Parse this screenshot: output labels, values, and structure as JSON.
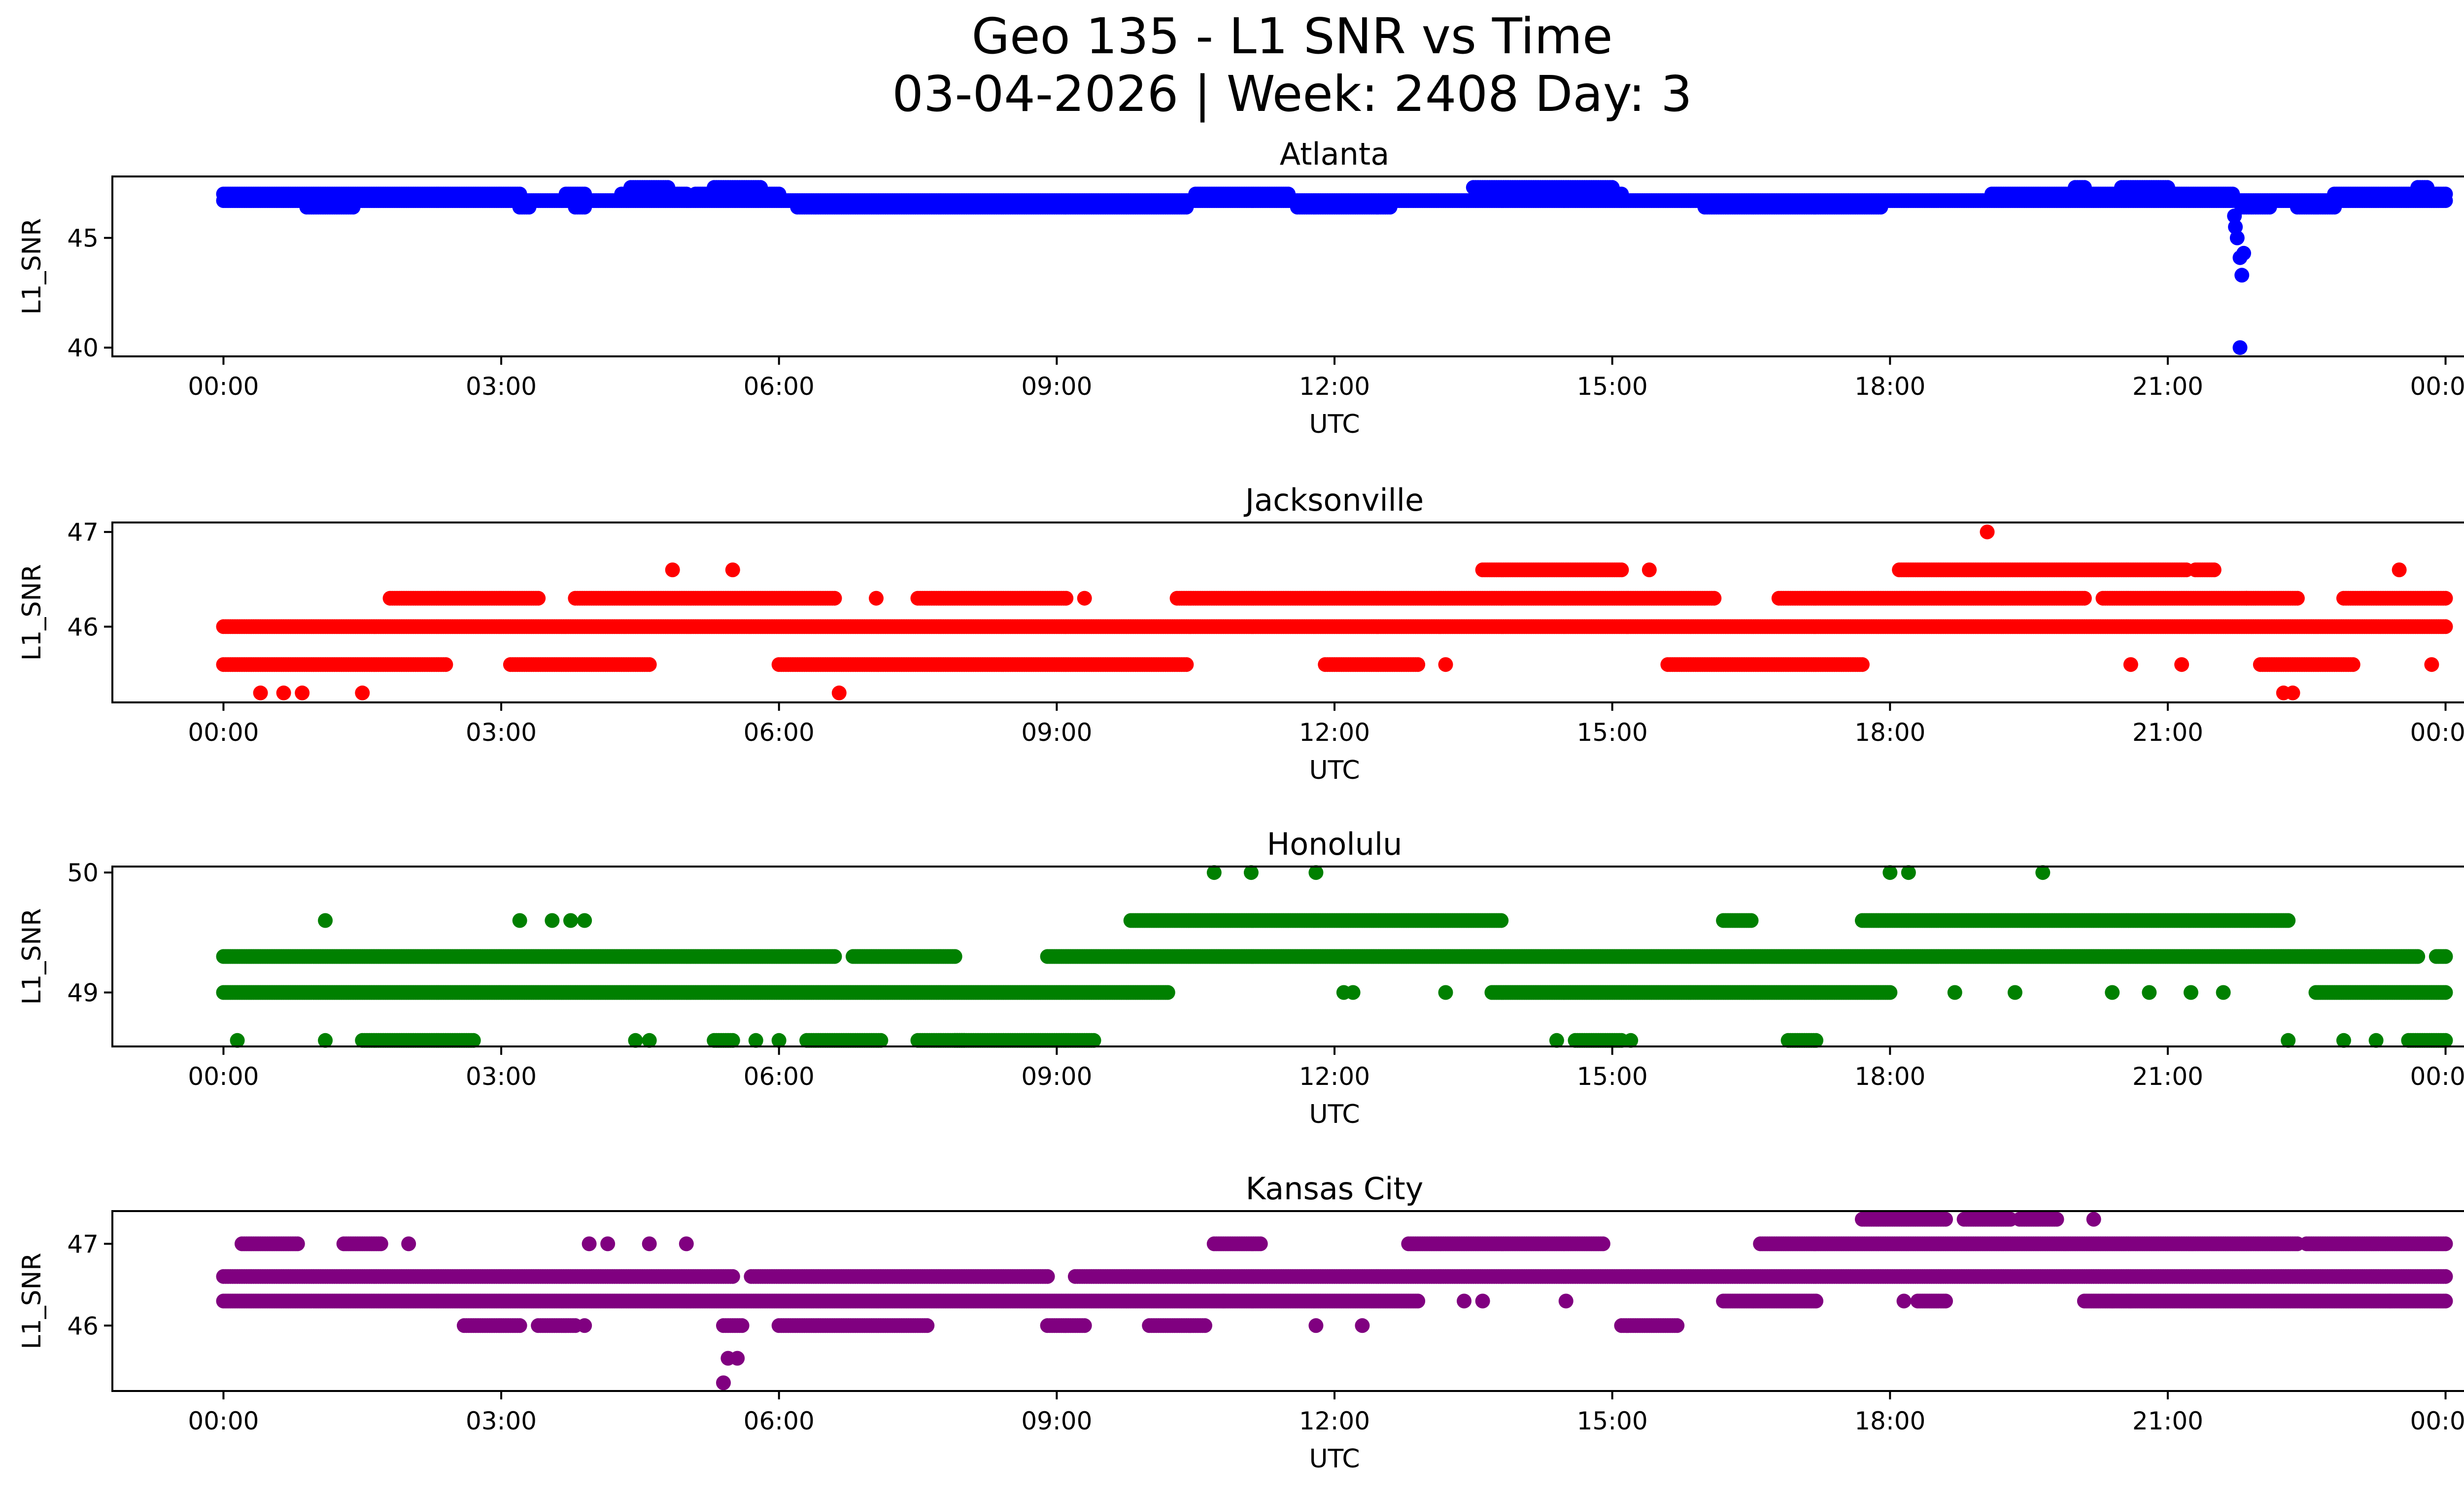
{
  "chart_data": {
    "title": "Geo 135 - L1 SNR vs Time",
    "subtitle": "03-04-2026 | Week: 2408 Day: 3",
    "type": "scatter",
    "x_ticks": [
      "00:00",
      "03:00",
      "06:00",
      "09:00",
      "12:00",
      "15:00",
      "18:00",
      "21:00",
      "00:00"
    ],
    "x_tick_hours": [
      0,
      3,
      6,
      9,
      12,
      15,
      18,
      21,
      24
    ],
    "xlim_hours": [
      -1.2,
      25.2
    ],
    "panels": [
      {
        "name": "Atlanta",
        "color": "#0000ff",
        "xlabel": "UTC",
        "ylabel": "L1_SNR",
        "ylim": [
          39.6,
          47.8
        ],
        "yticks": [
          40,
          45
        ],
        "ytick_labels": [
          "40",
          "45"
        ],
        "bands": [
          {
            "y": 46.7,
            "ranges": [
              [
                0,
                24
              ]
            ]
          },
          {
            "y": 46.4,
            "ranges": [
              [
                0.9,
                1.4
              ],
              [
                3.2,
                3.3
              ],
              [
                3.8,
                3.9
              ],
              [
                6.2,
                10.4
              ],
              [
                11.6,
                12.6
              ],
              [
                16.0,
                17.9
              ],
              [
                21.8,
                22.1
              ],
              [
                22.4,
                22.8
              ]
            ]
          },
          {
            "y": 47.0,
            "ranges": [
              [
                0,
                3.2
              ],
              [
                3.7,
                3.9
              ],
              [
                4.3,
                5.0
              ],
              [
                5.1,
                6.0
              ],
              [
                10.5,
                11.5
              ],
              [
                13.6,
                15.1
              ],
              [
                19.1,
                20.6
              ],
              [
                20.7,
                21.7
              ],
              [
                22.8,
                24
              ]
            ]
          },
          {
            "y": 47.3,
            "ranges": [
              [
                4.4,
                4.8
              ],
              [
                5.3,
                5.8
              ],
              [
                13.5,
                15.0
              ],
              [
                20.0,
                20.1
              ],
              [
                20.5,
                21.0
              ],
              [
                23.7,
                23.8
              ]
            ]
          }
        ],
        "extras": [
          [
            21.72,
            46.0
          ],
          [
            21.73,
            45.5
          ],
          [
            21.75,
            45.0
          ],
          [
            21.78,
            44.1
          ],
          [
            21.82,
            44.3
          ],
          [
            21.8,
            43.3
          ],
          [
            21.78,
            40.0
          ]
        ]
      },
      {
        "name": "Jacksonville",
        "color": "#ff0000",
        "xlabel": "UTC",
        "ylabel": "L1_SNR",
        "ylim": [
          45.2,
          47.1
        ],
        "yticks": [
          46,
          47
        ],
        "ytick_labels": [
          "46",
          "47"
        ],
        "bands": [
          {
            "y": 46.0,
            "ranges": [
              [
                0,
                24
              ]
            ]
          },
          {
            "y": 45.6,
            "ranges": [
              [
                0,
                2.4
              ],
              [
                3.1,
                4.6
              ],
              [
                6.0,
                10.4
              ],
              [
                11.9,
                12.9
              ],
              [
                15.6,
                17.7
              ],
              [
                22.0,
                23.0
              ]
            ]
          },
          {
            "y": 46.3,
            "ranges": [
              [
                1.8,
                3.4
              ],
              [
                3.8,
                6.6
              ],
              [
                7.5,
                9.1
              ],
              [
                10.3,
                16.1
              ],
              [
                16.8,
                20.1
              ],
              [
                20.3,
                22.4
              ],
              [
                22.9,
                24
              ]
            ]
          },
          {
            "y": 46.6,
            "ranges": [
              [
                13.6,
                15.1
              ],
              [
                18.1,
                21.2
              ],
              [
                21.3,
                21.5
              ]
            ]
          }
        ],
        "extras": [
          [
            0.4,
            45.3
          ],
          [
            0.65,
            45.3
          ],
          [
            0.85,
            45.3
          ],
          [
            1.5,
            45.3
          ],
          [
            4.85,
            46.6
          ],
          [
            5.5,
            46.6
          ],
          [
            6.65,
            45.3
          ],
          [
            7.05,
            46.3
          ],
          [
            9.3,
            46.3
          ],
          [
            13.2,
            45.6
          ],
          [
            15.4,
            46.6
          ],
          [
            19.05,
            47.0
          ],
          [
            20.6,
            45.6
          ],
          [
            21.15,
            45.6
          ],
          [
            21.85,
            46.3
          ],
          [
            22.25,
            45.3
          ],
          [
            22.35,
            45.3
          ],
          [
            23.5,
            46.6
          ],
          [
            23.85,
            45.6
          ]
        ]
      },
      {
        "name": "Honolulu",
        "color": "#008000",
        "xlabel": "UTC",
        "ylabel": "L1_SNR",
        "ylim": [
          48.55,
          50.05
        ],
        "yticks": [
          49,
          50
        ],
        "ytick_labels": [
          "49",
          "50"
        ],
        "bands": [
          {
            "y": 49.3,
            "ranges": [
              [
                0,
                6.6
              ],
              [
                6.8,
                7.9
              ],
              [
                8.9,
                23.7
              ],
              [
                23.9,
                24
              ]
            ]
          },
          {
            "y": 49.0,
            "ranges": [
              [
                0,
                10.2
              ],
              [
                13.7,
                18.0
              ],
              [
                22.6,
                24
              ]
            ]
          },
          {
            "y": 49.6,
            "ranges": [
              [
                9.8,
                13.8
              ],
              [
                16.2,
                16.5
              ],
              [
                17.7,
                22.3
              ]
            ]
          },
          {
            "y": 48.6,
            "ranges": [
              [
                1.5,
                2.7
              ],
              [
                5.3,
                5.5
              ],
              [
                6.3,
                7.1
              ],
              [
                7.5,
                8.0
              ],
              [
                7.9,
                9.4
              ],
              [
                14.6,
                15.1
              ],
              [
                16.9,
                17.2
              ],
              [
                23.6,
                24
              ]
            ]
          }
        ],
        "extras": [
          [
            0.15,
            48.6
          ],
          [
            1.1,
            49.6
          ],
          [
            1.1,
            48.6
          ],
          [
            3.2,
            49.6
          ],
          [
            3.55,
            49.6
          ],
          [
            3.75,
            49.6
          ],
          [
            3.9,
            49.6
          ],
          [
            4.45,
            48.6
          ],
          [
            4.6,
            48.6
          ],
          [
            5.75,
            48.6
          ],
          [
            6.0,
            48.6
          ],
          [
            10.7,
            50.0
          ],
          [
            11.1,
            50.0
          ],
          [
            11.8,
            50.0
          ],
          [
            12.1,
            49.0
          ],
          [
            12.2,
            49.0
          ],
          [
            13.2,
            49.0
          ],
          [
            14.4,
            48.6
          ],
          [
            15.2,
            48.6
          ],
          [
            18.0,
            50.0
          ],
          [
            18.2,
            50.0
          ],
          [
            18.7,
            49.0
          ],
          [
            19.35,
            49.0
          ],
          [
            19.65,
            50.0
          ],
          [
            20.4,
            49.0
          ],
          [
            20.8,
            49.0
          ],
          [
            21.25,
            49.0
          ],
          [
            21.6,
            49.0
          ],
          [
            22.3,
            48.6
          ],
          [
            22.9,
            48.6
          ],
          [
            23.25,
            48.6
          ]
        ]
      },
      {
        "name": "Kansas City",
        "color": "#800080",
        "xlabel": "UTC",
        "ylabel": "L1_SNR",
        "ylim": [
          45.2,
          47.4
        ],
        "yticks": [
          46,
          47
        ],
        "ytick_labels": [
          "46",
          "47"
        ],
        "bands": [
          {
            "y": 46.6,
            "ranges": [
              [
                0,
                5.5
              ],
              [
                5.7,
                8.9
              ],
              [
                9.2,
                24
              ]
            ]
          },
          {
            "y": 46.3,
            "ranges": [
              [
                0,
                10.8
              ],
              [
                10.8,
                12.9
              ],
              [
                16.2,
                17.2
              ],
              [
                18.3,
                18.6
              ],
              [
                20.1,
                24
              ]
            ]
          },
          {
            "y": 47.0,
            "ranges": [
              [
                0.2,
                0.8
              ],
              [
                1.3,
                1.7
              ],
              [
                10.7,
                11.2
              ],
              [
                12.8,
                14.9
              ],
              [
                16.6,
                22.4
              ],
              [
                22.5,
                24
              ]
            ]
          },
          {
            "y": 46.0,
            "ranges": [
              [
                2.6,
                3.2
              ],
              [
                3.4,
                3.8
              ],
              [
                5.4,
                5.6
              ],
              [
                6.0,
                7.6
              ],
              [
                8.9,
                9.3
              ],
              [
                10.0,
                10.6
              ],
              [
                15.1,
                15.7
              ]
            ]
          },
          {
            "y": 47.3,
            "ranges": [
              [
                17.7,
                18.6
              ],
              [
                18.8,
                19.3
              ],
              [
                19.4,
                19.8
              ]
            ]
          }
        ],
        "extras": [
          [
            2.0,
            47.0
          ],
          [
            3.95,
            47.0
          ],
          [
            4.15,
            47.0
          ],
          [
            4.6,
            47.0
          ],
          [
            5.0,
            47.0
          ],
          [
            5.45,
            45.6
          ],
          [
            5.55,
            45.6
          ],
          [
            5.4,
            45.3
          ],
          [
            3.9,
            46.0
          ],
          [
            11.8,
            46.0
          ],
          [
            12.3,
            46.0
          ],
          [
            13.4,
            46.3
          ],
          [
            13.6,
            46.3
          ],
          [
            14.5,
            46.3
          ],
          [
            18.15,
            46.3
          ],
          [
            20.2,
            47.3
          ],
          [
            20.4,
            46.3
          ],
          [
            20.6,
            46.3
          ],
          [
            23.4,
            46.3
          ]
        ]
      }
    ]
  }
}
